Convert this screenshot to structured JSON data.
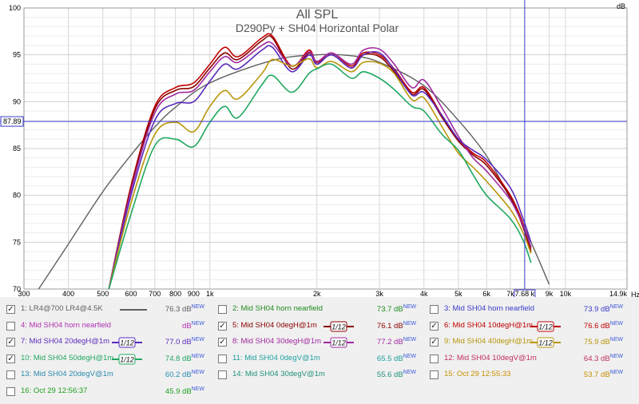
{
  "header": {
    "ylabel_unit": "dB",
    "xlabel_unit": "Hz"
  },
  "cursor": {
    "x_readout": "7.68 k",
    "y_readout": "87.89",
    "x_freq": 7680,
    "y_db": 87.89
  },
  "chart_data": {
    "type": "line",
    "title": "All SPL",
    "subtitle": "D290Py + SH04 Horizontal Polar",
    "xscale": "log",
    "xlim": [
      300,
      14900
    ],
    "ylim": [
      70,
      100
    ],
    "x_ticks": [
      300,
      400,
      500,
      600,
      700,
      800,
      900,
      1000,
      2000,
      3000,
      4000,
      5000,
      6000,
      7000,
      9000,
      10000,
      14900
    ],
    "x_tick_labels": [
      "300",
      "400",
      "500",
      "600",
      "700",
      "800",
      "900",
      "1k",
      "2k",
      "3k",
      "4k",
      "5k",
      "6k",
      "7k",
      "9k",
      "10k",
      "14.9k"
    ],
    "y_ticks": [
      70,
      75,
      80,
      85,
      90,
      95,
      100
    ],
    "y_tick_labels": [
      "70",
      "75",
      "80",
      "85",
      "90",
      "95",
      "100"
    ],
    "grid": true,
    "series": [
      {
        "name": "1: LR4@700 LR4@4.5K",
        "color": "#606060",
        "x": [
          330,
          400,
          500,
          600,
          700,
          800,
          1000,
          1500,
          2000,
          2500,
          3000,
          4000,
          5000,
          6000,
          7000,
          8000,
          9000
        ],
        "y": [
          70,
          74.8,
          80.4,
          84.3,
          87.3,
          89.4,
          92.0,
          94.4,
          95.0,
          94.9,
          94.2,
          91.7,
          88.0,
          84.2,
          79.6,
          75.0,
          70.5
        ]
      },
      {
        "name": "6: Mid SH04 10degH@1m",
        "color": "#c00000",
        "x": [
          520,
          600,
          700,
          800,
          900,
          1000,
          1100,
          1200,
          1400,
          1500,
          1700,
          1900,
          2000,
          2200,
          2500,
          2700,
          3000,
          3300,
          3700,
          4000,
          4500,
          5000,
          5500,
          6000,
          7000,
          7600,
          8000
        ],
        "y": [
          70,
          81,
          89.5,
          91.5,
          92.0,
          94.0,
          95.8,
          94.8,
          96.8,
          97.0,
          93.8,
          95.5,
          94.2,
          95.2,
          93.8,
          95.2,
          95.0,
          93.5,
          91.0,
          91.5,
          88.5,
          86.0,
          84.5,
          83.5,
          80.0,
          77.0,
          74.3
        ]
      },
      {
        "name": "5: Mid SH04 0degH@1m",
        "color": "#8b0000",
        "x": [
          520,
          600,
          700,
          800,
          900,
          1000,
          1100,
          1200,
          1400,
          1500,
          1700,
          1900,
          2000,
          2200,
          2500,
          2700,
          3000,
          3300,
          3700,
          4000,
          4500,
          5000,
          5500,
          6000,
          7000,
          7600,
          8000
        ],
        "y": [
          70,
          80.8,
          89.2,
          91.2,
          91.6,
          93.6,
          95.2,
          94.5,
          96.5,
          96.8,
          93.5,
          95.2,
          94.0,
          95.0,
          93.6,
          95.0,
          94.8,
          93.2,
          90.8,
          91.3,
          88.3,
          85.8,
          84.3,
          83.2,
          79.8,
          76.6,
          74.0
        ]
      },
      {
        "name": "8: Mid SH04 30degH@1m",
        "color": "#a02aa0",
        "x": [
          520,
          600,
          700,
          800,
          900,
          1000,
          1100,
          1200,
          1400,
          1500,
          1700,
          1900,
          2000,
          2200,
          2500,
          2700,
          3000,
          3300,
          3700,
          4000,
          4500,
          5000,
          5500,
          6000,
          7000,
          7600,
          8000
        ],
        "y": [
          70,
          80.5,
          88.8,
          90.8,
          91.2,
          93.2,
          94.8,
          94.2,
          96.0,
          96.2,
          93.8,
          95.3,
          94.3,
          95.2,
          94.0,
          95.5,
          95.6,
          94.0,
          91.5,
          92.3,
          89.3,
          86.3,
          84.0,
          82.6,
          79.5,
          76.8,
          74.5
        ]
      },
      {
        "name": "7: Mid SH04 20degH@1m",
        "color": "#5a2bbd",
        "x": [
          520,
          600,
          700,
          800,
          900,
          1000,
          1100,
          1200,
          1400,
          1500,
          1700,
          1900,
          2000,
          2200,
          2500,
          2700,
          3000,
          3300,
          3700,
          4000,
          4500,
          5000,
          5500,
          6000,
          7000,
          7600,
          8000
        ],
        "y": [
          70,
          80.0,
          88.0,
          89.8,
          90.0,
          92.2,
          94.0,
          93.5,
          95.5,
          95.8,
          93.2,
          95.0,
          94.0,
          95.0,
          93.6,
          95.0,
          95.2,
          93.4,
          90.7,
          91.0,
          88.5,
          86.0,
          84.8,
          83.8,
          80.8,
          77.5,
          75.0
        ]
      },
      {
        "name": "9: Mid SH04 40degH@1m",
        "color": "#b8960a",
        "x": [
          520,
          600,
          700,
          800,
          900,
          1000,
          1100,
          1200,
          1400,
          1500,
          1700,
          1900,
          2000,
          2200,
          2500,
          2700,
          3000,
          3300,
          3700,
          4000,
          4500,
          5000,
          5500,
          6000,
          7000,
          7600,
          8000
        ],
        "y": [
          70,
          79.2,
          86.5,
          87.8,
          86.8,
          89.5,
          91.2,
          90.3,
          93.0,
          94.5,
          93.8,
          94.6,
          93.6,
          94.3,
          93.2,
          94.2,
          94.1,
          93.0,
          90.2,
          90.4,
          87.3,
          84.5,
          83.0,
          81.5,
          78.5,
          76.0,
          73.8
        ]
      },
      {
        "name": "10: Mid SH04 50degH@1m",
        "color": "#20a860",
        "x": [
          520,
          600,
          700,
          800,
          900,
          1000,
          1100,
          1200,
          1400,
          1500,
          1700,
          1900,
          2000,
          2200,
          2500,
          2700,
          3000,
          3300,
          3700,
          4000,
          4500,
          5000,
          5500,
          6000,
          7000,
          7600,
          8000
        ],
        "y": [
          70,
          78.0,
          85.3,
          86.0,
          85.2,
          87.8,
          89.5,
          88.3,
          91.8,
          92.8,
          91.0,
          93.0,
          93.5,
          94.0,
          92.5,
          93.2,
          92.5,
          91.3,
          89.5,
          89.0,
          86.5,
          84.8,
          82.2,
          80.0,
          77.5,
          75.2,
          72.8
        ]
      }
    ]
  },
  "legend": {
    "new_label": "NEW",
    "items": [
      {
        "label": "1: LR4@700 LR4@4.5K",
        "value": "76.3 dB",
        "color": "#606060",
        "checked": true,
        "smoothing": ""
      },
      {
        "label": "2: Mid SH04 horn nearfield",
        "value": "73.7 dB",
        "color": "#1e8a1e",
        "checked": false,
        "smoothing": ""
      },
      {
        "label": "3: Mid SH04 horn nearfield",
        "value": "73.9 dB",
        "color": "#3a3ac8",
        "checked": false,
        "smoothing": ""
      },
      {
        "label": "4: Mid SH04 horn nearfield",
        "value": "dB",
        "color": "#b030b0",
        "checked": false,
        "smoothing": ""
      },
      {
        "label": "5: Mid SH04 0degH@1m",
        "value": "76.1 dB",
        "color": "#8b0000",
        "checked": true,
        "smoothing": "1/12"
      },
      {
        "label": "6: Mid SH04 10degH@1m",
        "value": "76.6 dB",
        "color": "#c00000",
        "checked": true,
        "smoothing": "1/12"
      },
      {
        "label": "7: Mid SH04 20degH@1m",
        "value": "77.0 dB",
        "color": "#5a2bbd",
        "checked": true,
        "smoothing": "1/12"
      },
      {
        "label": "8: Mid SH04 30degH@1m",
        "value": "77.2 dB",
        "color": "#a02aa0",
        "checked": true,
        "smoothing": "1/12"
      },
      {
        "label": "9: Mid SH04 40degH@1m",
        "value": "75.9 dB",
        "color": "#b8960a",
        "checked": true,
        "smoothing": "1/12"
      },
      {
        "label": "10: Mid SH04 50degH@1m",
        "value": "74.8 dB",
        "color": "#20a860",
        "checked": true,
        "smoothing": "1/12"
      },
      {
        "label": "11: Mid SH04 0degV@1m",
        "value": "65.5 dB",
        "color": "#20a0a0",
        "checked": false,
        "smoothing": ""
      },
      {
        "label": "12: Mid SH04 10degV@1m",
        "value": "64.3 dB",
        "color": "#c03060",
        "checked": false,
        "smoothing": ""
      },
      {
        "label": "13: Mid SH04 20degV@1m",
        "value": "60.2 dB",
        "color": "#2a8ab0",
        "checked": false,
        "smoothing": ""
      },
      {
        "label": "14: Mid SH04 30degV@1m",
        "value": "55.6 dB",
        "color": "#20907a",
        "checked": false,
        "smoothing": ""
      },
      {
        "label": "15: Oct 29 12:55:33",
        "value": "53.7 dB",
        "color": "#c89000",
        "checked": false,
        "smoothing": ""
      },
      {
        "label": "16: Oct 29 12:56:37",
        "value": "45.9 dB",
        "color": "#20a020",
        "checked": false,
        "smoothing": ""
      }
    ]
  }
}
